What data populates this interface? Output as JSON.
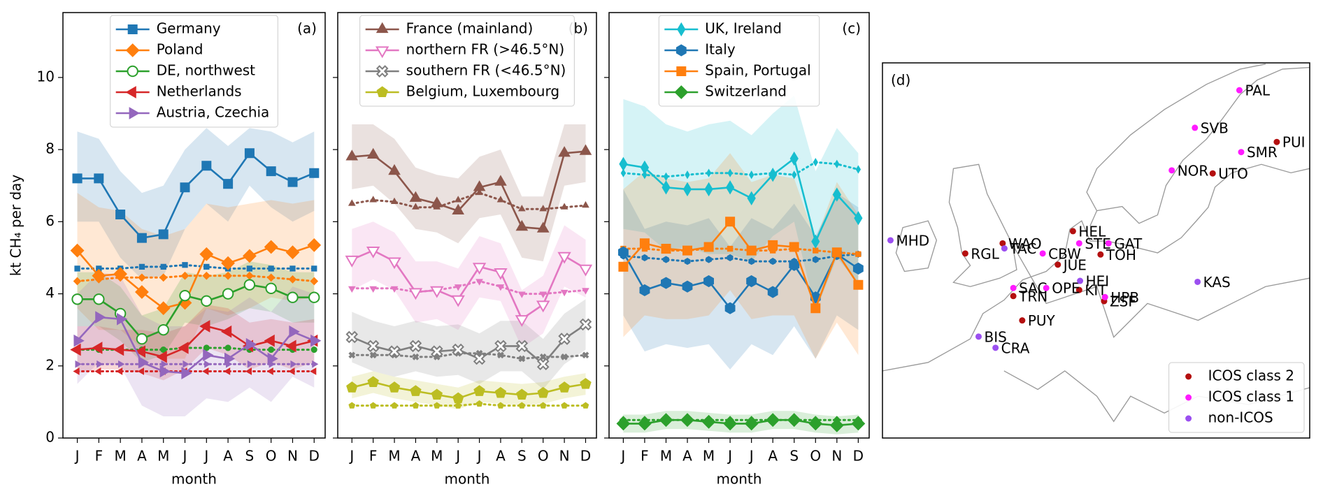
{
  "chart_data": [
    {
      "type": "line",
      "label": "(a)",
      "ylabel": "kt CH₄ per day",
      "xlabel": "month",
      "ytick_labels": true,
      "legend": "upper center",
      "categories": [
        "J",
        "F",
        "M",
        "A",
        "M",
        "J",
        "J",
        "A",
        "S",
        "O",
        "N",
        "D"
      ],
      "ylim": [
        0,
        11.8
      ],
      "yticks": [
        0,
        2,
        4,
        6,
        8,
        10
      ],
      "series": [
        {
          "name": "Germany",
          "color": "#1f77b4",
          "marker": "s",
          "hollow": false,
          "values": [
            7.2,
            7.2,
            6.2,
            5.55,
            5.65,
            6.95,
            7.55,
            7.05,
            7.9,
            7.4,
            7.1,
            7.35
          ],
          "prior": [
            4.7,
            4.7,
            4.7,
            4.75,
            4.75,
            4.8,
            4.75,
            4.7,
            4.7,
            4.7,
            4.7,
            4.7
          ],
          "upper": [
            8.5,
            8.3,
            7.4,
            6.8,
            7.0,
            8.0,
            8.6,
            8.1,
            8.6,
            8.5,
            8.2,
            8.5
          ],
          "lower": [
            6.0,
            6.0,
            5.0,
            4.4,
            4.5,
            5.8,
            6.5,
            6.0,
            7.0,
            6.4,
            6.0,
            6.3
          ]
        },
        {
          "name": "Poland",
          "color": "#ff7f0e",
          "marker": "D",
          "hollow": false,
          "values": [
            5.2,
            4.5,
            4.55,
            4.05,
            3.6,
            3.75,
            5.1,
            4.85,
            5.05,
            5.3,
            5.15,
            5.35
          ],
          "prior": [
            4.35,
            4.4,
            4.45,
            4.45,
            4.45,
            4.5,
            4.5,
            4.5,
            4.5,
            4.45,
            4.4,
            4.35
          ],
          "upper": [
            6.8,
            6.4,
            6.3,
            5.8,
            5.6,
            5.8,
            6.5,
            6.4,
            6.5,
            6.6,
            6.5,
            6.6
          ],
          "lower": [
            3.6,
            3.0,
            3.0,
            2.5,
            2.2,
            2.2,
            3.6,
            3.4,
            3.6,
            3.9,
            3.8,
            3.9
          ]
        },
        {
          "name": "DE, northwest",
          "color": "#2ca02c",
          "marker": "o",
          "hollow": true,
          "values": [
            3.85,
            3.85,
            3.45,
            2.75,
            3.0,
            3.95,
            3.8,
            4.0,
            4.25,
            4.15,
            3.9,
            3.9
          ],
          "prior": [
            2.45,
            2.45,
            2.45,
            2.45,
            2.45,
            2.5,
            2.5,
            2.5,
            2.45,
            2.45,
            2.45,
            2.45
          ],
          "upper": [
            4.6,
            4.6,
            4.2,
            3.4,
            3.6,
            4.6,
            4.5,
            4.6,
            4.9,
            4.8,
            4.6,
            4.6
          ],
          "lower": [
            3.1,
            3.1,
            2.7,
            2.1,
            2.3,
            3.2,
            3.1,
            3.3,
            3.6,
            3.5,
            3.2,
            3.2
          ]
        },
        {
          "name": "Netherlands",
          "color": "#d62728",
          "marker": "<",
          "hollow": false,
          "values": [
            2.45,
            2.5,
            2.45,
            2.4,
            2.25,
            2.5,
            3.1,
            2.95,
            2.55,
            2.7,
            2.55,
            2.7
          ],
          "prior": [
            1.85,
            1.85,
            1.85,
            1.85,
            1.85,
            1.85,
            1.85,
            1.85,
            1.85,
            1.85,
            1.85,
            1.85
          ],
          "upper": [
            3.1,
            3.1,
            3.0,
            3.0,
            2.9,
            3.1,
            3.7,
            3.6,
            3.2,
            3.3,
            3.2,
            3.3
          ],
          "lower": [
            1.8,
            1.9,
            1.9,
            1.8,
            1.6,
            1.9,
            2.5,
            2.3,
            1.9,
            2.1,
            1.9,
            2.1
          ]
        },
        {
          "name": "Austria, Czechia",
          "color": "#9467bd",
          "marker": ">",
          "hollow": false,
          "values": [
            2.7,
            3.35,
            3.3,
            2.1,
            1.85,
            1.8,
            2.3,
            2.2,
            2.6,
            2.2,
            2.95,
            2.7
          ],
          "prior": [
            2.05,
            2.05,
            2.05,
            2.05,
            2.05,
            2.05,
            2.05,
            2.05,
            2.05,
            2.05,
            2.05,
            2.05
          ],
          "upper": [
            4.0,
            4.6,
            4.5,
            3.4,
            3.1,
            3.1,
            3.6,
            3.5,
            3.9,
            3.5,
            4.2,
            4.0
          ],
          "lower": [
            1.5,
            2.1,
            2.0,
            0.9,
            0.6,
            0.6,
            1.1,
            1.0,
            1.4,
            1.0,
            1.7,
            1.4
          ]
        }
      ]
    },
    {
      "type": "line",
      "label": "(b)",
      "xlabel": "month",
      "ytick_labels": false,
      "legend": "upper center",
      "categories": [
        "J",
        "F",
        "M",
        "A",
        "M",
        "J",
        "J",
        "A",
        "S",
        "O",
        "N",
        "D"
      ],
      "ylim": [
        0,
        11.8
      ],
      "yticks": [
        0,
        2,
        4,
        6,
        8,
        10
      ],
      "series": [
        {
          "name": "France (mainland)",
          "color": "#8c564b",
          "marker": "^",
          "hollow": false,
          "values": [
            7.8,
            7.85,
            7.4,
            6.65,
            6.5,
            6.3,
            6.95,
            7.1,
            5.85,
            5.8,
            7.9,
            7.95
          ],
          "prior": [
            6.5,
            6.6,
            6.55,
            6.4,
            6.4,
            6.6,
            6.8,
            6.6,
            6.35,
            6.35,
            6.4,
            6.45
          ],
          "upper": [
            8.7,
            8.7,
            8.3,
            7.5,
            7.3,
            7.2,
            7.8,
            8.0,
            6.7,
            6.7,
            8.7,
            8.7
          ],
          "lower": [
            6.9,
            7.0,
            6.5,
            5.8,
            5.7,
            5.4,
            6.1,
            6.2,
            5.0,
            4.9,
            7.0,
            7.1
          ]
        },
        {
          "name": "northern FR (>46.5°N)",
          "color": "#e377c2",
          "marker": "v",
          "hollow": true,
          "values": [
            4.95,
            5.2,
            4.9,
            4.05,
            4.1,
            3.85,
            4.75,
            4.6,
            3.3,
            3.7,
            5.05,
            4.7
          ],
          "prior": [
            4.15,
            4.15,
            4.15,
            4.05,
            4.1,
            4.2,
            4.35,
            4.2,
            4.0,
            4.0,
            4.05,
            4.1
          ],
          "upper": [
            5.8,
            6.0,
            5.7,
            4.9,
            4.9,
            4.7,
            5.6,
            5.4,
            4.1,
            4.5,
            5.9,
            5.5
          ],
          "lower": [
            4.1,
            4.4,
            4.1,
            3.2,
            3.3,
            3.0,
            3.9,
            3.8,
            2.5,
            2.9,
            4.2,
            3.9
          ]
        },
        {
          "name": "southern FR (<46.5°N)",
          "color": "#7f7f7f",
          "marker": "X",
          "hollow": true,
          "values": [
            2.8,
            2.55,
            2.4,
            2.55,
            2.4,
            2.45,
            2.2,
            2.55,
            2.55,
            2.05,
            2.75,
            3.15
          ],
          "prior": [
            2.3,
            2.3,
            2.3,
            2.25,
            2.25,
            2.35,
            2.35,
            2.3,
            2.2,
            2.25,
            2.25,
            2.3
          ],
          "upper": [
            3.5,
            3.25,
            3.1,
            3.25,
            3.1,
            3.15,
            2.9,
            3.25,
            3.25,
            2.75,
            3.45,
            3.85
          ],
          "lower": [
            2.1,
            1.85,
            1.7,
            1.85,
            1.7,
            1.75,
            1.5,
            1.85,
            1.85,
            1.35,
            2.05,
            2.45
          ]
        },
        {
          "name": "Belgium, Luxembourg",
          "color": "#bcbd22",
          "marker": "p",
          "hollow": false,
          "values": [
            1.4,
            1.55,
            1.4,
            1.3,
            1.2,
            1.1,
            1.3,
            1.25,
            1.2,
            1.25,
            1.4,
            1.5
          ],
          "prior": [
            0.9,
            0.9,
            0.9,
            0.9,
            0.9,
            0.9,
            0.95,
            0.9,
            0.9,
            0.9,
            0.9,
            0.9
          ],
          "upper": [
            1.7,
            1.85,
            1.7,
            1.6,
            1.5,
            1.4,
            1.6,
            1.55,
            1.5,
            1.55,
            1.7,
            1.8
          ],
          "lower": [
            1.1,
            1.25,
            1.1,
            1.0,
            0.9,
            0.8,
            1.0,
            0.95,
            0.9,
            0.95,
            1.1,
            1.2
          ]
        }
      ]
    },
    {
      "type": "line",
      "label": "(c)",
      "xlabel": "month",
      "ytick_labels": false,
      "legend": "upper center",
      "categories": [
        "J",
        "F",
        "M",
        "A",
        "M",
        "J",
        "J",
        "A",
        "S",
        "O",
        "N",
        "D"
      ],
      "ylim": [
        0,
        11.8
      ],
      "yticks": [
        0,
        2,
        4,
        6,
        8,
        10
      ],
      "series": [
        {
          "name": "UK, Ireland",
          "color": "#17becf",
          "marker": "d",
          "hollow": false,
          "values": [
            7.6,
            7.5,
            6.95,
            6.9,
            6.9,
            6.95,
            6.65,
            7.3,
            7.75,
            5.45,
            6.75,
            6.1
          ],
          "prior": [
            7.35,
            7.3,
            7.25,
            7.3,
            7.35,
            7.35,
            7.3,
            7.35,
            7.3,
            7.65,
            7.6,
            7.45
          ],
          "upper": [
            9.4,
            9.2,
            8.7,
            8.5,
            8.7,
            8.8,
            8.4,
            9.0,
            9.5,
            7.4,
            8.6,
            7.9
          ],
          "lower": [
            5.8,
            5.7,
            5.2,
            5.3,
            5.1,
            5.1,
            4.9,
            5.6,
            6.0,
            3.5,
            5.0,
            4.3
          ]
        },
        {
          "name": "Italy",
          "color": "#1f77b4",
          "marker": "h",
          "hollow": false,
          "values": [
            5.15,
            4.1,
            4.3,
            4.2,
            4.35,
            3.6,
            4.35,
            4.05,
            4.8,
            3.9,
            5.1,
            4.7
          ],
          "prior": [
            5.05,
            5.0,
            4.95,
            4.9,
            4.95,
            5.0,
            4.9,
            4.9,
            4.9,
            4.95,
            5.05,
            5.1
          ],
          "upper": [
            6.9,
            5.8,
            6.0,
            5.9,
            6.1,
            5.3,
            6.1,
            5.8,
            6.5,
            5.6,
            6.8,
            6.4
          ],
          "lower": [
            3.4,
            2.4,
            2.6,
            2.5,
            2.6,
            1.9,
            2.6,
            2.3,
            3.1,
            2.2,
            3.4,
            3.0
          ]
        },
        {
          "name": "Spain, Portugal",
          "color": "#ff7f0e",
          "marker": "s",
          "hollow": false,
          "values": [
            4.75,
            5.4,
            5.25,
            5.2,
            5.3,
            6.0,
            5.2,
            5.35,
            5.3,
            3.6,
            5.15,
            4.25
          ],
          "prior": [
            5.25,
            5.25,
            5.2,
            5.2,
            5.25,
            5.25,
            5.2,
            5.2,
            5.25,
            5.2,
            5.15,
            5.1
          ],
          "upper": [
            6.9,
            7.4,
            7.2,
            7.1,
            7.2,
            7.9,
            7.1,
            7.3,
            7.2,
            5.5,
            7.1,
            6.2
          ],
          "lower": [
            2.8,
            3.4,
            3.3,
            3.3,
            3.4,
            4.1,
            3.3,
            3.4,
            3.4,
            2.2,
            3.2,
            2.3
          ]
        },
        {
          "name": "Switzerland",
          "color": "#2ca02c",
          "marker": "D",
          "hollow": false,
          "values": [
            0.4,
            0.4,
            0.5,
            0.5,
            0.45,
            0.4,
            0.4,
            0.5,
            0.5,
            0.4,
            0.35,
            0.4
          ],
          "prior": [
            0.5,
            0.5,
            0.5,
            0.5,
            0.5,
            0.5,
            0.5,
            0.5,
            0.5,
            0.5,
            0.5,
            0.5
          ],
          "upper": [
            0.65,
            0.65,
            0.75,
            0.75,
            0.7,
            0.65,
            0.65,
            0.75,
            0.75,
            0.65,
            0.6,
            0.65
          ],
          "lower": [
            0.15,
            0.15,
            0.25,
            0.25,
            0.2,
            0.15,
            0.15,
            0.25,
            0.25,
            0.15,
            0.1,
            0.15
          ]
        }
      ]
    },
    {
      "type": "map",
      "label": "(d)",
      "xlim": [
        -12,
        36
      ],
      "ylim": [
        35,
        72
      ],
      "legend": "lower right",
      "groups": [
        {
          "name": "ICOS class 2",
          "color": "#b40f0f",
          "stations": [
            {
              "name": "PUI",
              "lon": 32.3,
              "lat": 64.2
            },
            {
              "name": "UTO",
              "lon": 25.1,
              "lat": 61.1
            },
            {
              "name": "HEL",
              "lon": 9.4,
              "lat": 55.4
            },
            {
              "name": "WAO",
              "lon": 1.5,
              "lat": 54.2
            },
            {
              "name": "RGL",
              "lon": -2.7,
              "lat": 53.2
            },
            {
              "name": "TOH",
              "lon": 12.5,
              "lat": 53.1
            },
            {
              "name": "JUE",
              "lon": 7.7,
              "lat": 52.1
            },
            {
              "name": "TRN",
              "lon": 2.7,
              "lat": 49.0
            },
            {
              "name": "ZSF",
              "lon": 12.9,
              "lat": 48.5
            },
            {
              "name": "PUY",
              "lon": 3.7,
              "lat": 46.6
            },
            {
              "name": "KIT",
              "lon": 10.1,
              "lat": 49.6
            }
          ]
        },
        {
          "name": "ICOS class 1",
          "color": "#ff1aff",
          "stations": [
            {
              "name": "PAL",
              "lon": 28.1,
              "lat": 69.3
            },
            {
              "name": "SVB",
              "lon": 23.1,
              "lat": 65.6
            },
            {
              "name": "SMR",
              "lon": 28.3,
              "lat": 63.2
            },
            {
              "name": "NOR",
              "lon": 20.5,
              "lat": 61.4
            },
            {
              "name": "STE",
              "lon": 10.1,
              "lat": 54.2
            },
            {
              "name": "GAT",
              "lon": 13.4,
              "lat": 54.2
            },
            {
              "name": "CBW",
              "lon": 6.0,
              "lat": 53.2
            },
            {
              "name": "SAC",
              "lon": 2.7,
              "lat": 49.8
            },
            {
              "name": "OPE",
              "lon": 6.4,
              "lat": 49.8
            },
            {
              "name": "HPB",
              "lon": 13.0,
              "lat": 48.9
            }
          ]
        },
        {
          "name": "non-ICOS",
          "color": "#9b4ff0",
          "stations": [
            {
              "name": "MHD",
              "lon": -11.1,
              "lat": 54.5
            },
            {
              "name": "TAC",
              "lon": 1.7,
              "lat": 53.7
            },
            {
              "name": "HEI",
              "lon": 10.2,
              "lat": 50.5
            },
            {
              "name": "KAS",
              "lon": 23.4,
              "lat": 50.4
            },
            {
              "name": "BIS",
              "lon": -1.2,
              "lat": 45.0
            },
            {
              "name": "CRA",
              "lon": 0.7,
              "lat": 43.9
            }
          ]
        }
      ]
    }
  ]
}
